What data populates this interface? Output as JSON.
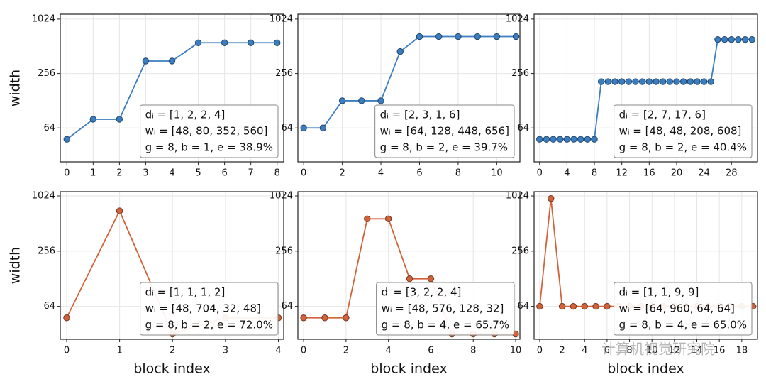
{
  "chart_data": [
    {
      "type": "line",
      "yscale": "log",
      "grid": true,
      "ylabel": "width",
      "color": "#3b7dbf",
      "x": [
        0,
        1,
        2,
        3,
        4,
        5,
        6,
        7,
        8
      ],
      "values": [
        48,
        80,
        80,
        352,
        352,
        560,
        560,
        560,
        560
      ],
      "xlim": [
        -0.25,
        8.25
      ],
      "xticks": [
        0,
        1,
        2,
        3,
        4,
        5,
        6,
        7,
        8
      ],
      "ylim": [
        27,
        1160
      ],
      "yticks": [
        64,
        256,
        1024
      ],
      "annotation": [
        "dᵢ = [1, 2, 2, 4]",
        "wᵢ = [48, 80, 352, 560]",
        "g = 8, b = 1, e = 38.9%"
      ]
    },
    {
      "type": "line",
      "yscale": "log",
      "grid": true,
      "color": "#3b7dbf",
      "x": [
        0,
        1,
        2,
        3,
        4,
        5,
        6,
        7,
        8,
        9,
        10,
        11
      ],
      "values": [
        64,
        64,
        128,
        128,
        128,
        448,
        656,
        656,
        656,
        656,
        656,
        656
      ],
      "xlim": [
        -0.3,
        11.2
      ],
      "xticks": [
        0,
        2,
        4,
        6,
        8,
        10
      ],
      "ylim": [
        27,
        1160
      ],
      "yticks": [
        64,
        256,
        1024
      ],
      "annotation": [
        "dᵢ = [2, 3, 1, 6]",
        "wᵢ = [64, 128, 448, 656]",
        "g = 8, b = 2, e = 39.7%"
      ]
    },
    {
      "type": "line",
      "yscale": "log",
      "grid": true,
      "color": "#3b7dbf",
      "x": [
        0,
        1,
        2,
        3,
        4,
        5,
        6,
        7,
        8,
        9,
        10,
        11,
        12,
        13,
        14,
        15,
        16,
        17,
        18,
        19,
        20,
        21,
        22,
        23,
        24,
        25,
        26,
        27,
        28,
        29,
        30,
        31
      ],
      "values": [
        48,
        48,
        48,
        48,
        48,
        48,
        48,
        48,
        48,
        208,
        208,
        208,
        208,
        208,
        208,
        208,
        208,
        208,
        208,
        208,
        208,
        208,
        208,
        208,
        208,
        208,
        608,
        608,
        608,
        608,
        608,
        608
      ],
      "xlim": [
        -0.8,
        31.8
      ],
      "xticks": [
        0,
        4,
        8,
        12,
        16,
        20,
        24,
        28
      ],
      "ylim": [
        27,
        1160
      ],
      "yticks": [
        64,
        256,
        1024
      ],
      "annotation": [
        "dᵢ = [2, 7, 17, 6]",
        "wᵢ = [48, 48, 208, 608]",
        "g = 8, b = 2, e = 40.4%"
      ]
    },
    {
      "type": "line",
      "yscale": "log",
      "grid": true,
      "ylabel": "width",
      "xlabel": "block index",
      "color": "#d2623a",
      "x": [
        0,
        1,
        2,
        3,
        4
      ],
      "values": [
        48,
        704,
        32,
        48,
        48
      ],
      "xlim": [
        -0.12,
        4.1
      ],
      "xticks": [
        0,
        1,
        2,
        3,
        4
      ],
      "ylim": [
        28,
        1140
      ],
      "yticks": [
        64,
        256,
        1024
      ],
      "annotation": [
        "dᵢ = [1, 1, 1, 2]",
        "wᵢ = [48, 704, 32, 48]",
        "g = 8, b = 2, e = 72.0%"
      ]
    },
    {
      "type": "line",
      "yscale": "log",
      "grid": true,
      "xlabel": "block index",
      "color": "#d2623a",
      "x": [
        0,
        1,
        2,
        3,
        4,
        5,
        6,
        7,
        8,
        9,
        10
      ],
      "values": [
        48,
        48,
        48,
        576,
        576,
        128,
        128,
        32,
        32,
        32,
        32
      ],
      "xlim": [
        -0.27,
        10.2
      ],
      "xticks": [
        0,
        2,
        4,
        6,
        8,
        10
      ],
      "ylim": [
        28,
        1140
      ],
      "yticks": [
        64,
        256,
        1024
      ],
      "annotation": [
        "dᵢ = [3, 2, 2, 4]",
        "wᵢ = [48, 576, 128, 32]",
        "g = 8, b = 4, e = 65.7%"
      ]
    },
    {
      "type": "line",
      "yscale": "log",
      "grid": true,
      "xlabel": "block index",
      "color": "#d2623a",
      "x": [
        0,
        1,
        2,
        3,
        4,
        5,
        6,
        7,
        8,
        9,
        10,
        11,
        12,
        13,
        14,
        15,
        16,
        17,
        18,
        19
      ],
      "values": [
        64,
        960,
        64,
        64,
        64,
        64,
        64,
        64,
        64,
        64,
        64,
        64,
        64,
        64,
        64,
        64,
        64,
        64,
        64,
        64
      ],
      "xlim": [
        -0.5,
        19.4
      ],
      "xticks": [
        0,
        2,
        4,
        6,
        8,
        10,
        12,
        14,
        16,
        18
      ],
      "ylim": [
        28,
        1140
      ],
      "yticks": [
        64,
        256,
        1024
      ],
      "annotation": [
        "dᵢ = [1, 1, 9, 9]",
        "wᵢ = [64, 960, 64, 64]",
        "g = 8, b = 4, e = 65.0%"
      ]
    }
  ],
  "watermark": "计算机视觉研究院"
}
